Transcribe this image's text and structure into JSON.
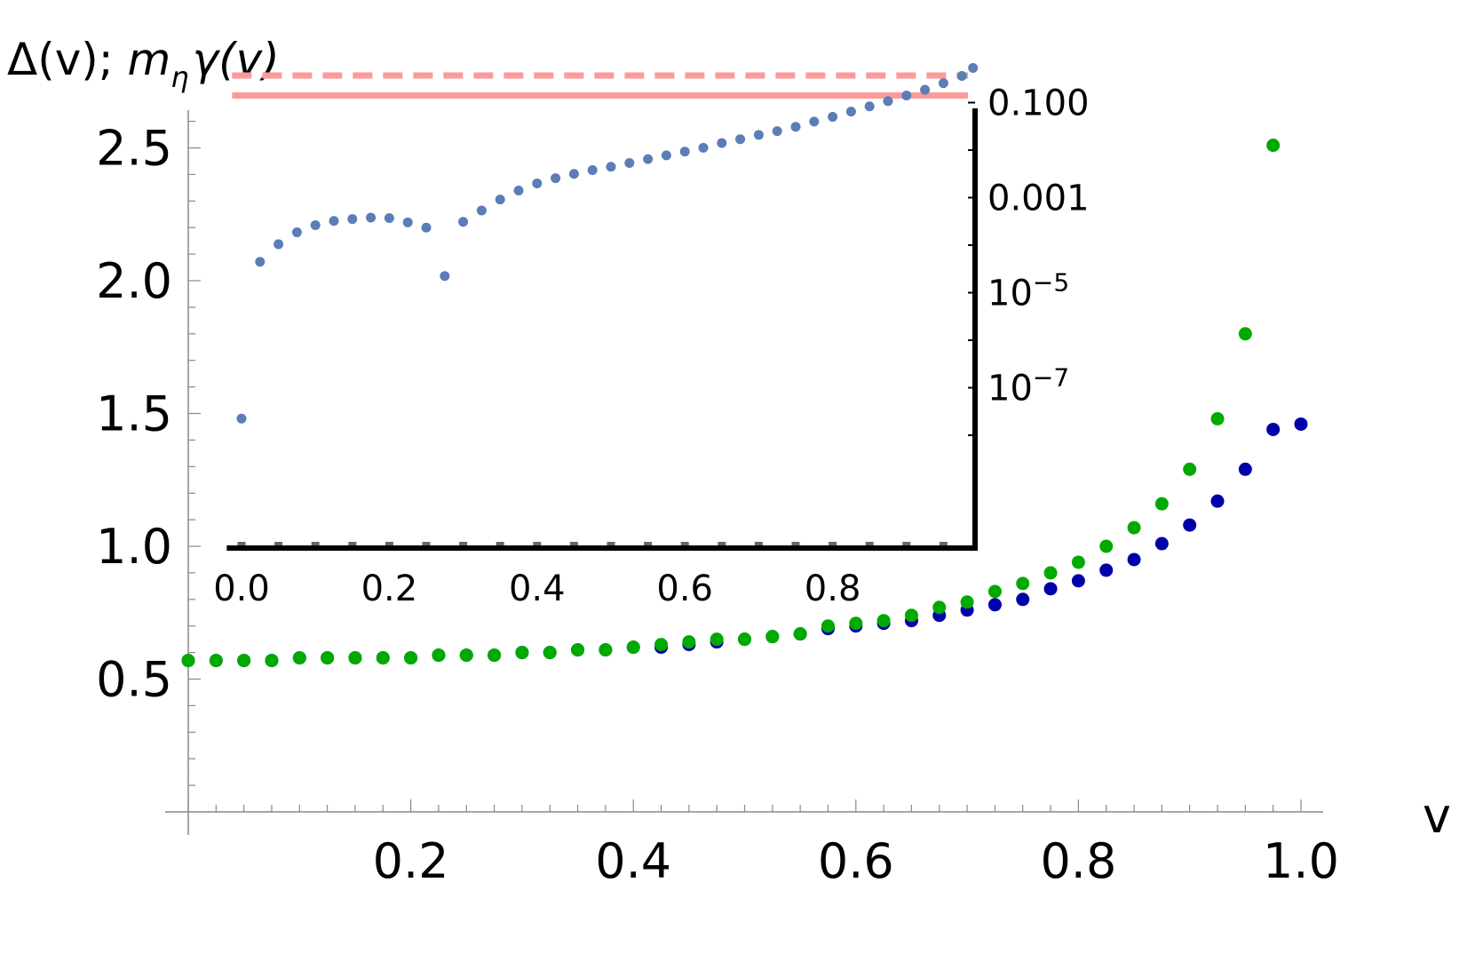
{
  "chart_data": [
    {
      "type": "scatter",
      "title": "",
      "ylabel": "Δ(v); m_η γ(v)",
      "ylabel_parts": {
        "a": "Δ(v); ",
        "b": "m",
        "c": "η",
        "d": "γ(v)"
      },
      "xlabel": "v",
      "xlim": [
        0.0,
        1.0
      ],
      "ylim": [
        0.0,
        2.65
      ],
      "xticks": [
        "0.2",
        "0.4",
        "0.6",
        "0.8",
        "1.0"
      ],
      "yticks": [
        "0.5",
        "1.0",
        "1.5",
        "2.0",
        "2.5"
      ],
      "grid": false,
      "series": [
        {
          "color": "#0000aa",
          "points": [
            [
              0.0,
              0.57
            ],
            [
              0.025,
              0.57
            ],
            [
              0.05,
              0.57
            ],
            [
              0.075,
              0.57
            ],
            [
              0.1,
              0.58
            ],
            [
              0.125,
              0.58
            ],
            [
              0.15,
              0.58
            ],
            [
              0.175,
              0.58
            ],
            [
              0.2,
              0.58
            ],
            [
              0.225,
              0.59
            ],
            [
              0.25,
              0.59
            ],
            [
              0.275,
              0.59
            ],
            [
              0.3,
              0.6
            ],
            [
              0.325,
              0.6
            ],
            [
              0.35,
              0.61
            ],
            [
              0.375,
              0.61
            ],
            [
              0.4,
              0.62
            ],
            [
              0.425,
              0.62
            ],
            [
              0.45,
              0.63
            ],
            [
              0.475,
              0.64
            ],
            [
              0.5,
              0.65
            ],
            [
              0.525,
              0.66
            ],
            [
              0.55,
              0.67
            ],
            [
              0.575,
              0.69
            ],
            [
              0.6,
              0.7
            ],
            [
              0.625,
              0.71
            ],
            [
              0.65,
              0.72
            ],
            [
              0.675,
              0.74
            ],
            [
              0.7,
              0.76
            ],
            [
              0.725,
              0.78
            ],
            [
              0.75,
              0.8
            ],
            [
              0.775,
              0.84
            ],
            [
              0.8,
              0.87
            ],
            [
              0.825,
              0.91
            ],
            [
              0.85,
              0.95
            ],
            [
              0.875,
              1.01
            ],
            [
              0.9,
              1.08
            ],
            [
              0.925,
              1.17
            ],
            [
              0.95,
              1.29
            ],
            [
              0.975,
              1.44
            ],
            [
              1.0,
              1.46
            ]
          ]
        },
        {
          "color": "#00aa00",
          "points": [
            [
              0.0,
              0.57
            ],
            [
              0.025,
              0.57
            ],
            [
              0.05,
              0.57
            ],
            [
              0.075,
              0.57
            ],
            [
              0.1,
              0.58
            ],
            [
              0.125,
              0.58
            ],
            [
              0.15,
              0.58
            ],
            [
              0.175,
              0.58
            ],
            [
              0.2,
              0.58
            ],
            [
              0.225,
              0.59
            ],
            [
              0.25,
              0.59
            ],
            [
              0.275,
              0.59
            ],
            [
              0.3,
              0.6
            ],
            [
              0.325,
              0.6
            ],
            [
              0.35,
              0.61
            ],
            [
              0.375,
              0.61
            ],
            [
              0.4,
              0.62
            ],
            [
              0.425,
              0.63
            ],
            [
              0.45,
              0.64
            ],
            [
              0.475,
              0.65
            ],
            [
              0.5,
              0.65
            ],
            [
              0.525,
              0.66
            ],
            [
              0.55,
              0.67
            ],
            [
              0.575,
              0.7
            ],
            [
              0.6,
              0.71
            ],
            [
              0.625,
              0.72
            ],
            [
              0.65,
              0.74
            ],
            [
              0.675,
              0.77
            ],
            [
              0.7,
              0.79
            ],
            [
              0.725,
              0.83
            ],
            [
              0.75,
              0.86
            ],
            [
              0.775,
              0.9
            ],
            [
              0.8,
              0.94
            ],
            [
              0.825,
              1.0
            ],
            [
              0.85,
              1.07
            ],
            [
              0.875,
              1.16
            ],
            [
              0.9,
              1.29
            ],
            [
              0.925,
              1.48
            ],
            [
              0.95,
              1.8
            ],
            [
              0.975,
              2.51
            ]
          ]
        }
      ]
    },
    {
      "type": "scatter",
      "title": "",
      "xlabel": "",
      "ylabel": "",
      "xlim": [
        -0.02,
        0.995
      ],
      "ylim_log10": [
        -8.7,
        0.0
      ],
      "yscale": "log",
      "xticks": [
        "0.0",
        "0.2",
        "0.4",
        "0.6",
        "0.8"
      ],
      "yticks": [
        {
          "base": "0.100",
          "exp": "",
          "log10": -1
        },
        {
          "base": "0.001",
          "exp": "",
          "log10": -3
        },
        {
          "base": "10",
          "exp": "−5",
          "log10": -5
        },
        {
          "base": "10",
          "exp": "−7",
          "log10": -7
        }
      ],
      "reference_lines": [
        {
          "style": "dashed",
          "color": "#ff9999",
          "log10": -0.43
        },
        {
          "style": "solid",
          "color": "#ff9999",
          "log10": -0.85
        }
      ],
      "series": [
        {
          "color": "#5b7db8",
          "points_log10": [
            [
              0.0,
              -7.65
            ],
            [
              0.025,
              -4.35
            ],
            [
              0.05,
              -3.98
            ],
            [
              0.075,
              -3.73
            ],
            [
              0.1,
              -3.58
            ],
            [
              0.125,
              -3.49
            ],
            [
              0.15,
              -3.45
            ],
            [
              0.175,
              -3.42
            ],
            [
              0.2,
              -3.43
            ],
            [
              0.225,
              -3.52
            ],
            [
              0.25,
              -3.63
            ],
            [
              0.275,
              -4.65
            ],
            [
              0.3,
              -3.51
            ],
            [
              0.325,
              -3.27
            ],
            [
              0.35,
              -3.04
            ],
            [
              0.375,
              -2.85
            ],
            [
              0.4,
              -2.7
            ],
            [
              0.425,
              -2.59
            ],
            [
              0.45,
              -2.5
            ],
            [
              0.475,
              -2.42
            ],
            [
              0.5,
              -2.35
            ],
            [
              0.525,
              -2.27
            ],
            [
              0.55,
              -2.19
            ],
            [
              0.575,
              -2.11
            ],
            [
              0.6,
              -2.03
            ],
            [
              0.625,
              -1.95
            ],
            [
              0.65,
              -1.85
            ],
            [
              0.675,
              -1.77
            ],
            [
              0.7,
              -1.68
            ],
            [
              0.725,
              -1.6
            ],
            [
              0.75,
              -1.51
            ],
            [
              0.775,
              -1.4
            ],
            [
              0.8,
              -1.3
            ],
            [
              0.825,
              -1.19
            ],
            [
              0.85,
              -1.08
            ],
            [
              0.875,
              -0.97
            ],
            [
              0.9,
              -0.85
            ],
            [
              0.925,
              -0.73
            ],
            [
              0.95,
              -0.59
            ],
            [
              0.975,
              -0.44
            ],
            [
              0.99,
              -0.27
            ]
          ]
        },
        {
          "color": "#666666",
          "marker": "square",
          "points_x": [
            0.0,
            0.05,
            0.1,
            0.15,
            0.2,
            0.25,
            0.3,
            0.35,
            0.4,
            0.45,
            0.5,
            0.55,
            0.6,
            0.65,
            0.7,
            0.75,
            0.8,
            0.85,
            0.9,
            0.95
          ]
        }
      ]
    }
  ]
}
